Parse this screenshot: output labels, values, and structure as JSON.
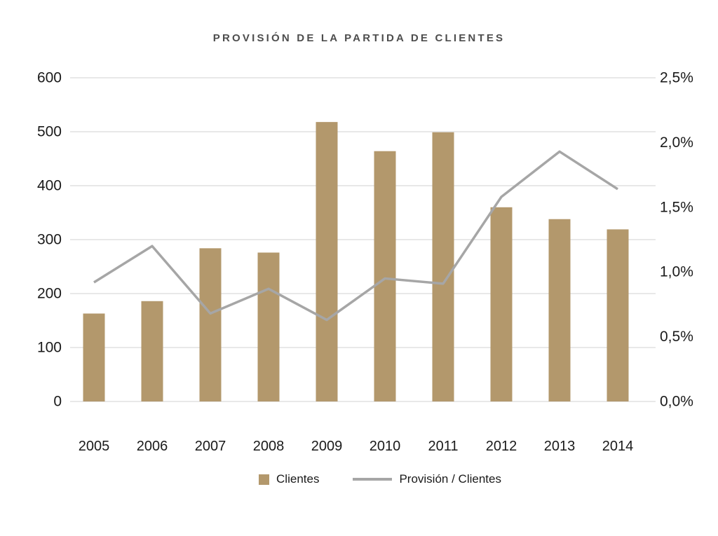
{
  "title": "PROVISIÓN DE LA PARTIDA DE CLIENTES",
  "colors": {
    "bar": "#b3986c",
    "line": "#a6a6a6",
    "gridline": "#e1e1e1",
    "axis_text": "#1a1a1a",
    "title_text": "#4d4d4d",
    "background": "#ffffff"
  },
  "legend": {
    "bar_label": "Clientes",
    "line_label": "Provisión / Clientes"
  },
  "chart_data": {
    "type": "bar+line",
    "title": "PROVISIÓN DE LA PARTIDA DE CLIENTES",
    "categories": [
      "2005",
      "2006",
      "2007",
      "2008",
      "2009",
      "2010",
      "2011",
      "2012",
      "2013",
      "2014"
    ],
    "series": [
      {
        "name": "Clientes",
        "type": "bar",
        "axis": "left",
        "color": "#b3986c",
        "values": [
          163,
          186,
          284,
          276,
          518,
          464,
          499,
          360,
          338,
          319
        ]
      },
      {
        "name": "Provisión / Clientes",
        "type": "line",
        "axis": "right",
        "color": "#a6a6a6",
        "values": [
          0.92,
          1.2,
          0.68,
          0.87,
          0.63,
          0.95,
          0.91,
          1.58,
          1.93,
          1.64
        ]
      }
    ],
    "left_axis": {
      "min": 0,
      "max": 600,
      "tick_step": 100,
      "tick_labels": [
        "0",
        "100",
        "200",
        "300",
        "400",
        "500",
        "600"
      ]
    },
    "right_axis": {
      "min": 0,
      "max": 2.5,
      "tick_step": 0.5,
      "tick_labels": [
        "0,0%",
        "0,5%",
        "1,0%",
        "1,5%",
        "2,0%",
        "2,5%"
      ]
    },
    "grid": true,
    "legend_position": "bottom"
  }
}
